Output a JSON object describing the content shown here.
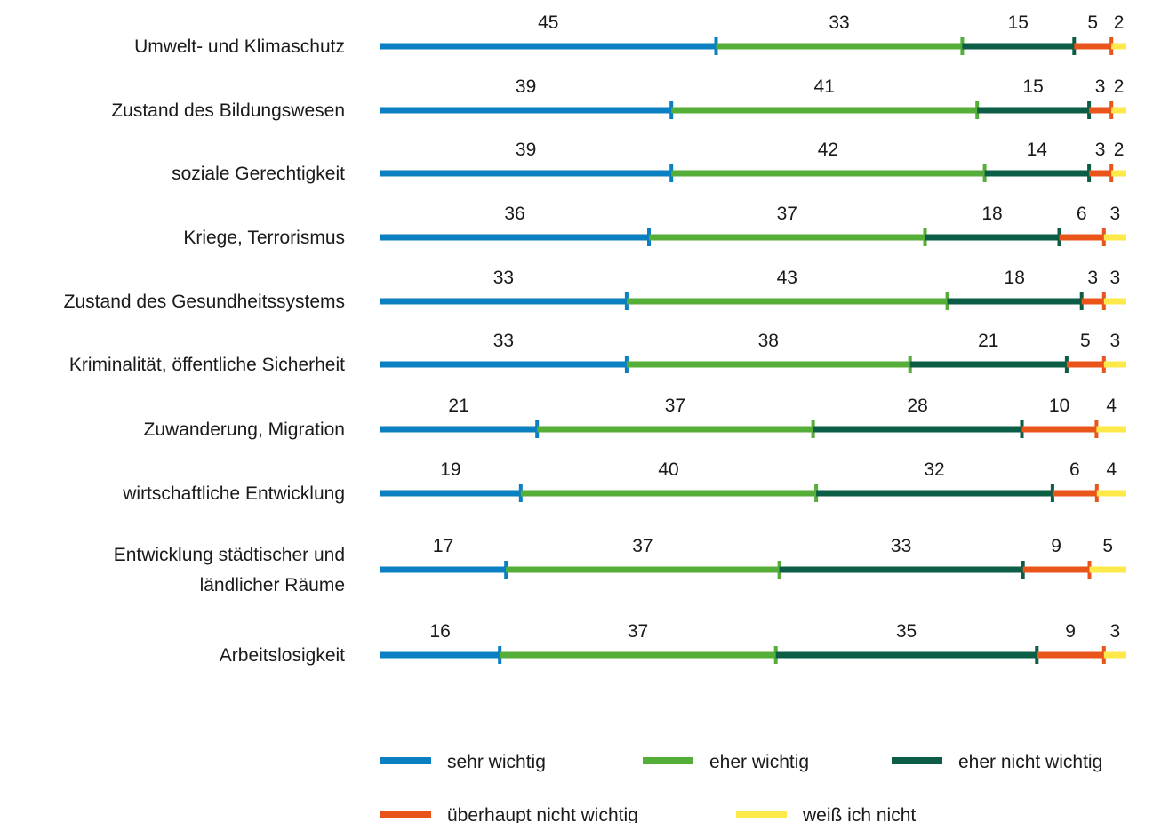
{
  "colors": {
    "sehr_wichtig": "#0a7fc2",
    "eher_wichtig": "#55ad3a",
    "eher_nicht_wichtig": "#0b5e45",
    "ueberhaupt_nicht_wichtig": "#e8541a",
    "weiss_ich_nicht": "#fde94a"
  },
  "chart_data": {
    "type": "bar",
    "orientation": "horizontal",
    "stacked": true,
    "categories": [
      [
        "Umwelt- und Klimaschutz"
      ],
      [
        "Zustand des Bildungswesen"
      ],
      [
        "soziale Gerechtigkeit"
      ],
      [
        "Kriege, Terrorismus"
      ],
      [
        "Zustand des Gesundheitssystems"
      ],
      [
        "Kriminalität, öffentliche Sicherheit"
      ],
      [
        "Zuwanderung, Migration"
      ],
      [
        "wirtschaftliche Entwicklung"
      ],
      [
        "Entwicklung städtischer und",
        "ländlicher Räume"
      ],
      [
        "Arbeitslosigkeit"
      ]
    ],
    "series": [
      {
        "name": "sehr wichtig",
        "values": [
          45,
          39,
          39,
          36,
          33,
          33,
          21,
          19,
          17,
          16
        ]
      },
      {
        "name": "eher wichtig",
        "values": [
          33,
          41,
          42,
          37,
          43,
          38,
          37,
          40,
          37,
          37
        ]
      },
      {
        "name": "eher nicht wichtig",
        "values": [
          15,
          15,
          14,
          18,
          18,
          21,
          28,
          32,
          33,
          35
        ]
      },
      {
        "name": "überhaupt nicht wichtig",
        "values": [
          5,
          3,
          3,
          6,
          3,
          5,
          10,
          6,
          9,
          9
        ]
      },
      {
        "name": "weiß ich nicht",
        "values": [
          2,
          2,
          2,
          3,
          3,
          3,
          4,
          4,
          5,
          3
        ]
      }
    ],
    "xlim": [
      0,
      100
    ],
    "grid": false,
    "legend_position": "bottom"
  }
}
